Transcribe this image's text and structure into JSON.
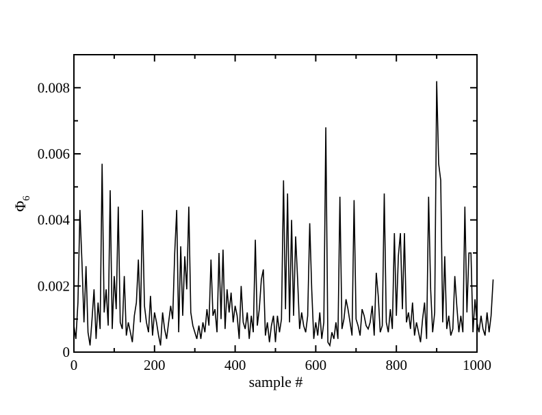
{
  "chart_data": {
    "type": "line",
    "xlabel": "sample #",
    "ylabel": "Φ",
    "ylabel_subscript": "6",
    "xlim": [
      0,
      1000
    ],
    "ylim": [
      0,
      0.009
    ],
    "xticks": [
      0,
      200,
      400,
      600,
      800,
      1000
    ],
    "xtick_labels": [
      "0",
      "200",
      "400",
      "600",
      "800",
      "1000"
    ],
    "yticks": [
      0,
      0.002,
      0.004,
      0.006,
      0.008
    ],
    "ytick_labels": [
      "0",
      "0.002",
      "0.004",
      "0.006",
      "0.008"
    ],
    "grid": false,
    "legend": "none",
    "line_color": "#000000",
    "series": [
      {
        "x_start": 0,
        "x_step": 5,
        "values": [
          0.0008,
          0.0004,
          0.0015,
          0.0043,
          0.0027,
          0.0009,
          0.0026,
          0.0006,
          0.0002,
          0.001,
          0.0019,
          0.0004,
          0.0015,
          0.0007,
          0.0057,
          0.0012,
          0.0019,
          0.0008,
          0.0049,
          0.0007,
          0.0023,
          0.0013,
          0.0044,
          0.0009,
          0.0007,
          0.0023,
          0.0005,
          0.0009,
          0.0006,
          0.0003,
          0.0011,
          0.0015,
          0.0028,
          0.0009,
          0.0043,
          0.0014,
          0.0009,
          0.0006,
          0.0017,
          0.0005,
          0.0012,
          0.0009,
          0.0005,
          0.0002,
          0.0012,
          0.0007,
          0.0004,
          0.0009,
          0.0014,
          0.001,
          0.003,
          0.0043,
          0.0006,
          0.0032,
          0.0011,
          0.0029,
          0.0019,
          0.0044,
          0.0012,
          0.0008,
          0.0006,
          0.0004,
          0.0008,
          0.0004,
          0.0009,
          0.0006,
          0.0013,
          0.0008,
          0.0028,
          0.0011,
          0.0013,
          0.0006,
          0.003,
          0.001,
          0.0031,
          0.0007,
          0.0019,
          0.0012,
          0.0018,
          0.0009,
          0.0014,
          0.0011,
          0.0004,
          0.002,
          0.0009,
          0.0007,
          0.0012,
          0.0004,
          0.0011,
          0.0006,
          0.0034,
          0.0008,
          0.0013,
          0.0022,
          0.0025,
          0.0005,
          0.0009,
          0.0003,
          0.0008,
          0.0011,
          0.0003,
          0.0011,
          0.0006,
          0.001,
          0.0052,
          0.0013,
          0.0048,
          0.0009,
          0.004,
          0.0011,
          0.0035,
          0.0022,
          0.0007,
          0.0012,
          0.0008,
          0.0006,
          0.0011,
          0.0039,
          0.0019,
          0.0004,
          0.0009,
          0.0005,
          0.0012,
          0.0004,
          0.0009,
          0.0068,
          0.0003,
          0.0002,
          0.0006,
          0.0004,
          0.0009,
          0.0004,
          0.0047,
          0.0007,
          0.001,
          0.0016,
          0.0013,
          0.0009,
          0.0005,
          0.0046,
          0.001,
          0.0008,
          0.0005,
          0.0013,
          0.0011,
          0.0008,
          0.0007,
          0.0009,
          0.0014,
          0.0005,
          0.0024,
          0.0017,
          0.0006,
          0.0008,
          0.0048,
          0.0009,
          0.0006,
          0.0013,
          0.0007,
          0.0036,
          0.0011,
          0.0029,
          0.0036,
          0.0013,
          0.0036,
          0.0009,
          0.0012,
          0.0007,
          0.0015,
          0.0005,
          0.0009,
          0.0006,
          0.0003,
          0.001,
          0.0015,
          0.0004,
          0.0047,
          0.0019,
          0.0006,
          0.0012,
          0.0082,
          0.0057,
          0.0052,
          0.0009,
          0.0029,
          0.0007,
          0.0011,
          0.0005,
          0.0007,
          0.0023,
          0.0014,
          0.0006,
          0.0011,
          0.0006,
          0.0044,
          0.0012,
          0.003,
          0.003,
          0.0006,
          0.0016,
          0.0009,
          0.0006,
          0.0011,
          0.0007,
          0.0005,
          0.0012,
          0.0006,
          0.0011,
          0.0022
        ]
      }
    ]
  }
}
